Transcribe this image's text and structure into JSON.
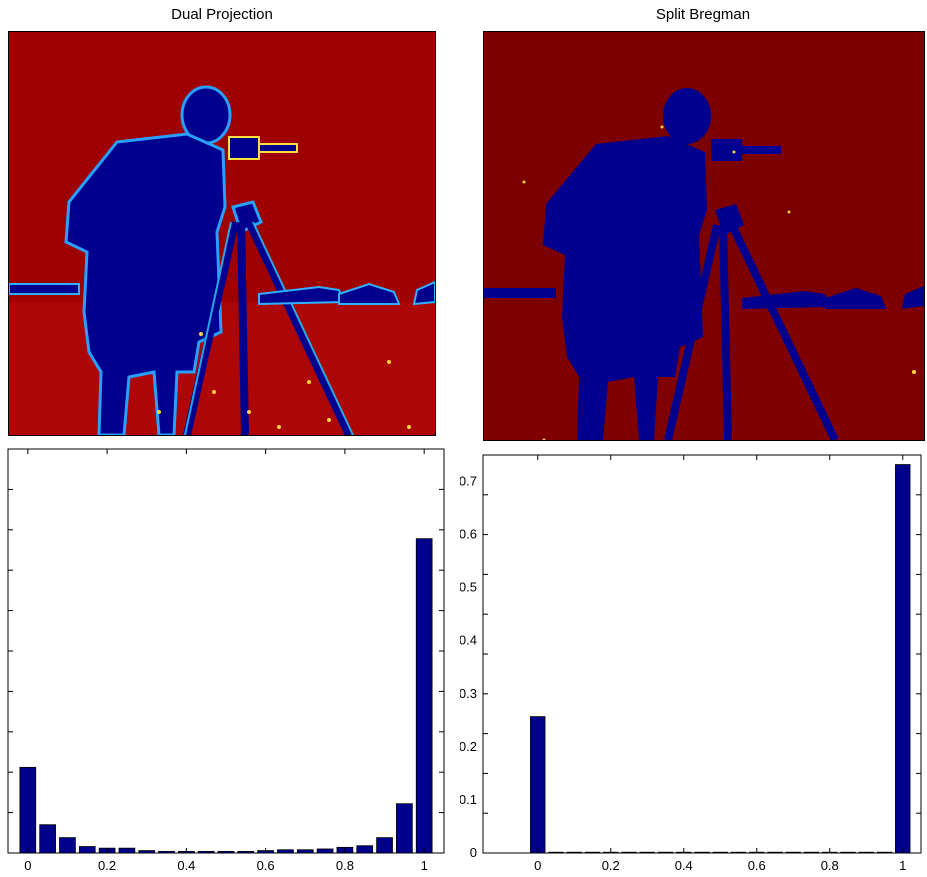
{
  "panels": {
    "left": {
      "title": "Dual Projection"
    },
    "right": {
      "title": "Split Bregman"
    }
  },
  "images": {
    "left": {
      "subject": "cameraman segmentation",
      "colormap": "jet",
      "background": "#9e0000",
      "foreground": "#00008f"
    },
    "right": {
      "subject": "cameraman segmentation",
      "colormap": "jet",
      "background": "#7c0000",
      "foreground": "#00008f"
    }
  },
  "colors": {
    "bar": "#00008b",
    "axis": "#000000",
    "tick_text": "#000000"
  },
  "chart_data": [
    {
      "type": "bar",
      "title": "",
      "xlabel": "",
      "ylabel": "",
      "x": [
        0,
        0.05,
        0.1,
        0.15,
        0.2,
        0.25,
        0.3,
        0.35,
        0.4,
        0.45,
        0.5,
        0.55,
        0.6,
        0.65,
        0.7,
        0.75,
        0.8,
        0.85,
        0.9,
        0.95,
        1.0
      ],
      "values": [
        0.106,
        0.035,
        0.019,
        0.008,
        0.006,
        0.006,
        0.003,
        0.002,
        0.002,
        0.002,
        0.002,
        0.002,
        0.003,
        0.004,
        0.004,
        0.005,
        0.007,
        0.009,
        0.019,
        0.061,
        0.389
      ],
      "xlim": [
        -0.05,
        1.05
      ],
      "ylim": [
        0,
        0.5
      ],
      "xticks": [
        "0",
        "0.2",
        "0.4",
        "0.6",
        "0.8",
        "1"
      ],
      "yticks": []
    },
    {
      "type": "bar",
      "title": "",
      "xlabel": "",
      "ylabel": "",
      "x": [
        0,
        0.05,
        0.1,
        0.15,
        0.2,
        0.25,
        0.3,
        0.35,
        0.4,
        0.45,
        0.5,
        0.55,
        0.6,
        0.65,
        0.7,
        0.75,
        0.8,
        0.85,
        0.9,
        0.95,
        1.0
      ],
      "values": [
        0.257,
        0.001,
        0.001,
        0.001,
        0.001,
        0.001,
        0.001,
        0.001,
        0.001,
        0.001,
        0.001,
        0.001,
        0.001,
        0.001,
        0.001,
        0.001,
        0.001,
        0.001,
        0.001,
        0.001,
        0.732
      ],
      "xlim": [
        -0.15,
        1.05
      ],
      "ylim": [
        0,
        0.75
      ],
      "xticks": [
        "0",
        "0.2",
        "0.4",
        "0.6",
        "0.8",
        "1"
      ],
      "yticks": [
        "0",
        "0.1",
        "0.2",
        "0.3",
        "0.4",
        "0.5",
        "0.6",
        "0.7"
      ]
    }
  ]
}
